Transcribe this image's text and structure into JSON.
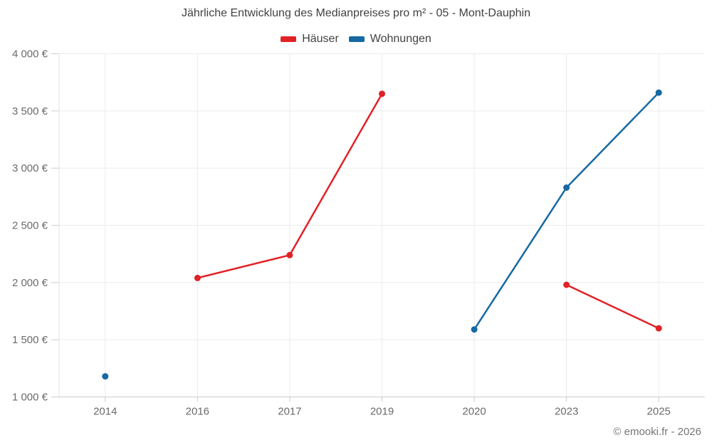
{
  "chart_data": {
    "type": "line",
    "title": "Jährliche Entwicklung des Medianpreises pro m² - 05 - Mont-Dauphin",
    "categories": [
      "2014",
      "2016",
      "2017",
      "2019",
      "2020",
      "2023",
      "2025"
    ],
    "series": [
      {
        "name": "Häuser",
        "color": "#e02227",
        "values": [
          null,
          2040,
          2240,
          3650,
          null,
          1980,
          1600
        ]
      },
      {
        "name": "Wohnungen",
        "color": "#1669a2",
        "values": [
          1180,
          null,
          null,
          null,
          1590,
          2830,
          3660
        ]
      }
    ],
    "ylim": [
      1000,
      4000
    ],
    "ytick_step": 500,
    "ytick_suffix": " €",
    "ytick_labels": [
      "1 000 €",
      "1 500 €",
      "2 000 €",
      "2 500 €",
      "3 000 €",
      "3 500 €",
      "4 000 €"
    ],
    "grid": true,
    "legend_position": "top",
    "xlabel": "",
    "ylabel": ""
  },
  "footer": {
    "text": "© emooki.fr - 2026"
  },
  "colors": {
    "background": "#ffffff",
    "grid": "#ececec",
    "axis_line": "#e3e3e3",
    "tick": "#cccccc",
    "bottom_axis": "#cccccc",
    "title_text": "#424242",
    "legend_text": "#424242",
    "axis_text": "#6b6b6b",
    "footer_text": "#757575"
  }
}
